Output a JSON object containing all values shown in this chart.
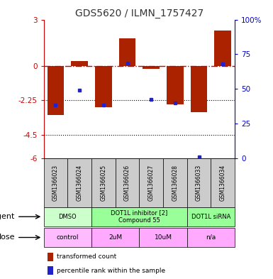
{
  "title": "GDS5620 / ILMN_1757427",
  "samples": [
    "GSM1366023",
    "GSM1366024",
    "GSM1366025",
    "GSM1366026",
    "GSM1366027",
    "GSM1366028",
    "GSM1366033",
    "GSM1366034"
  ],
  "bar_values": [
    -3.2,
    0.3,
    -2.7,
    1.8,
    -0.2,
    -2.5,
    -3.0,
    2.3
  ],
  "dot_values": [
    -2.55,
    -1.6,
    -2.55,
    0.15,
    -2.2,
    -2.4,
    -5.95,
    0.1
  ],
  "ylim": [
    -6,
    3
  ],
  "yticks_left": [
    -6,
    -4.5,
    -2.25,
    0,
    3
  ],
  "yticks_right": [
    0,
    25,
    50,
    75,
    100
  ],
  "hline_dash": 0,
  "hline_dot1": -2.25,
  "hline_dot2": -4.5,
  "bar_color": "#aa2200",
  "dot_color": "#2222cc",
  "agent_groups": [
    {
      "label": "DMSO",
      "cols": [
        0,
        1
      ],
      "color": "#ccffcc"
    },
    {
      "label": "DOT1L inhibitor [2]\nCompound 55",
      "cols": [
        2,
        3,
        4,
        5
      ],
      "color": "#99ff99"
    },
    {
      "label": "DOT1L siRNA",
      "cols": [
        6,
        7
      ],
      "color": "#99ff99"
    }
  ],
  "dose_groups": [
    {
      "label": "control",
      "cols": [
        0,
        1
      ],
      "color": "#ffbbff"
    },
    {
      "label": "2uM",
      "cols": [
        2,
        3
      ],
      "color": "#ffaaff"
    },
    {
      "label": "10uM",
      "cols": [
        4,
        5
      ],
      "color": "#ffaaff"
    },
    {
      "label": "n/a",
      "cols": [
        6,
        7
      ],
      "color": "#ffaaff"
    }
  ],
  "agent_label": "agent",
  "dose_label": "dose",
  "legend_bar_label": "transformed count",
  "legend_dot_label": "percentile rank within the sample",
  "title_color": "#333333",
  "left_axis_color": "#cc0000",
  "right_axis_color": "#0000cc",
  "bar_width": 0.7,
  "sample_col_color": "#cccccc",
  "sample_col_edge": "#999999"
}
